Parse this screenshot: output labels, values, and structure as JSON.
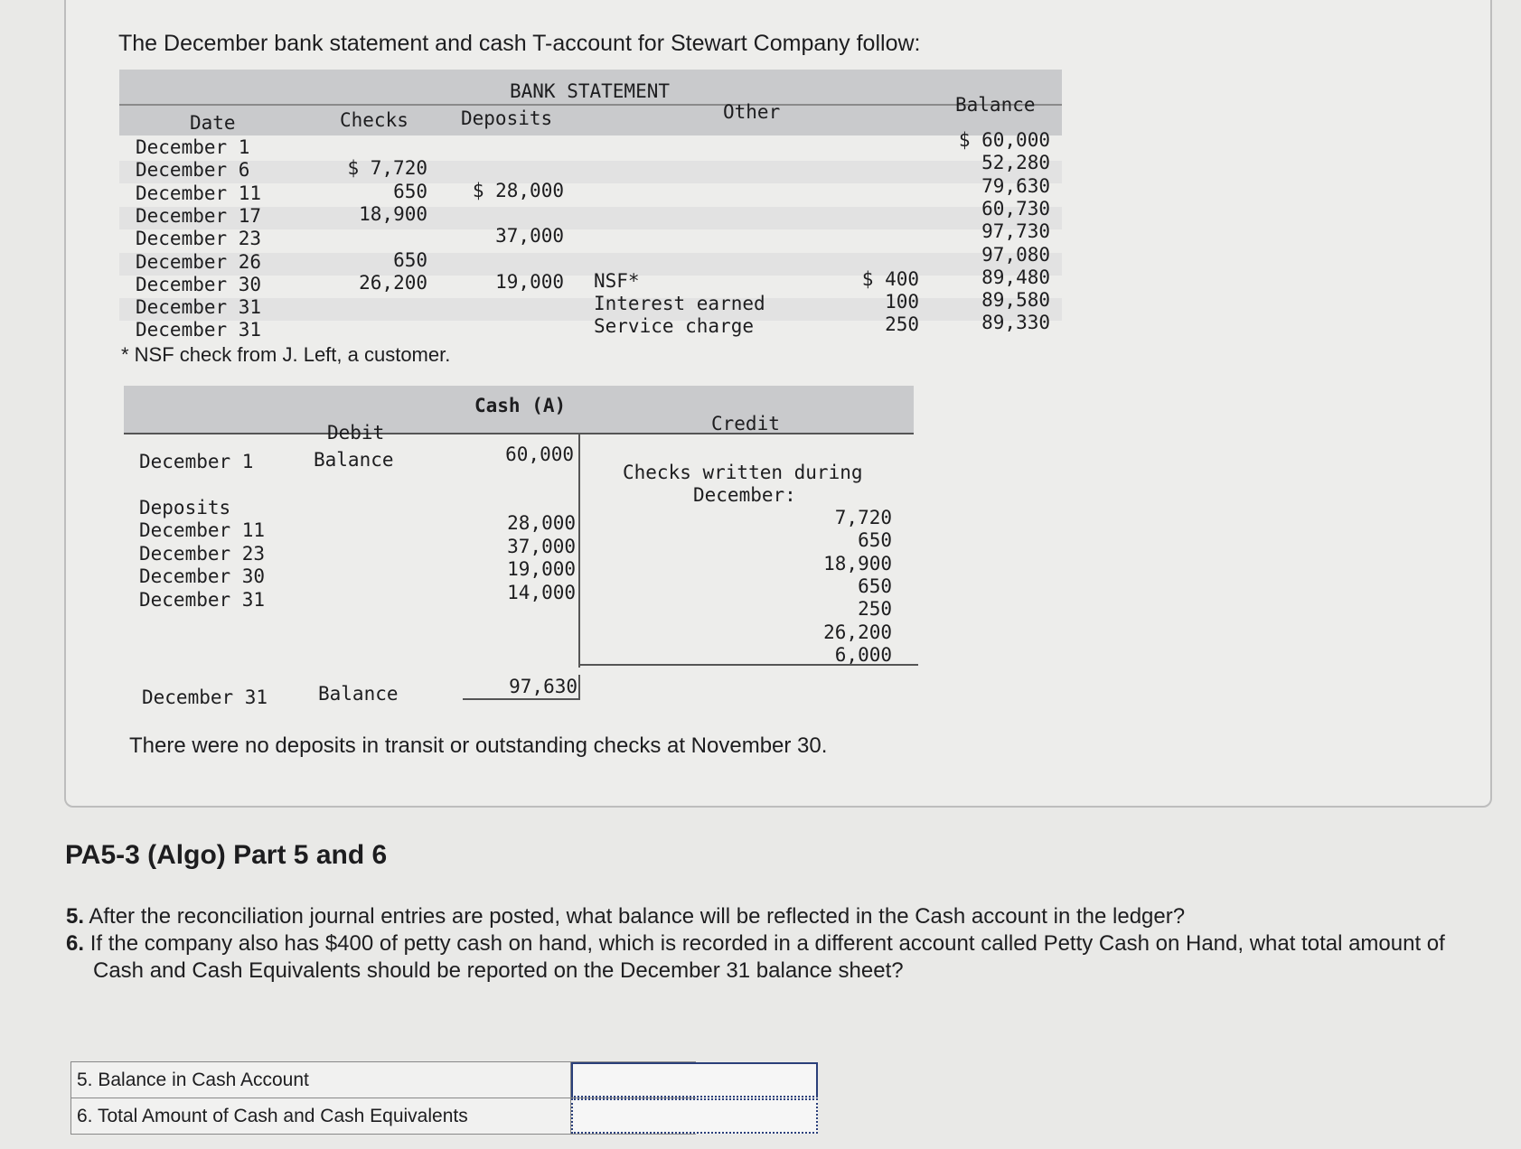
{
  "intro": "The December bank statement and cash T-account for Stewart Company follow:",
  "bank_statement": {
    "title": "BANK STATEMENT",
    "headers": {
      "date": "Date",
      "checks": "Checks",
      "deposits": "Deposits",
      "other": "Other",
      "balance": "Balance"
    },
    "rows": [
      {
        "date": "December 1",
        "checks": "",
        "deposits": "",
        "other_label": "",
        "other_amount": "",
        "balance": "$ 60,000"
      },
      {
        "date": "December 6",
        "checks": "$ 7,720",
        "deposits": "",
        "other_label": "",
        "other_amount": "",
        "balance": "52,280"
      },
      {
        "date": "December 11",
        "checks": "650",
        "deposits": "$ 28,000",
        "other_label": "",
        "other_amount": "",
        "balance": "79,630"
      },
      {
        "date": "December 17",
        "checks": "18,900",
        "deposits": "",
        "other_label": "",
        "other_amount": "",
        "balance": "60,730"
      },
      {
        "date": "December 23",
        "checks": "",
        "deposits": "37,000",
        "other_label": "",
        "other_amount": "",
        "balance": "97,730"
      },
      {
        "date": "December 26",
        "checks": "650",
        "deposits": "",
        "other_label": "",
        "other_amount": "",
        "balance": "97,080"
      },
      {
        "date": "December 30",
        "checks": "26,200",
        "deposits": "19,000",
        "other_label": "NSF*",
        "other_amount": "$ 400",
        "balance": "89,480"
      },
      {
        "date": "December 31",
        "checks": "",
        "deposits": "",
        "other_label": "Interest earned",
        "other_amount": "100",
        "balance": "89,580"
      },
      {
        "date": "December 31",
        "checks": "",
        "deposits": "",
        "other_label": "Service charge",
        "other_amount": "250",
        "balance": "89,330"
      }
    ],
    "footnote": "* NSF check from J. Left, a customer."
  },
  "cash_t_account": {
    "title": "Cash (A)",
    "debit_label": "Debit",
    "credit_label": "Credit",
    "opening": {
      "date": "December 1",
      "label": "Balance",
      "amount": "60,000"
    },
    "deposits_label": "Deposits",
    "deposits": [
      {
        "date": "December 11",
        "amount": "28,000"
      },
      {
        "date": "December 23",
        "amount": "37,000"
      },
      {
        "date": "December 30",
        "amount": "19,000"
      },
      {
        "date": "December 31",
        "amount": "14,000"
      }
    ],
    "credit_heading_1": "Checks written during",
    "credit_heading_2": "December:",
    "checks": [
      "7,720",
      "650",
      "18,900",
      "650",
      "250",
      "26,200",
      "6,000"
    ],
    "closing": {
      "date": "December 31",
      "label": "Balance",
      "amount": "97,630"
    }
  },
  "note": "There were no deposits in transit or outstanding checks at November 30.",
  "heading": "PA5-3 (Algo) Part 5 and 6",
  "questions": [
    {
      "num": "5.",
      "text": "After the reconciliation journal entries are posted, what balance will be reflected in the Cash account in the ledger?"
    },
    {
      "num": "6.",
      "text": "If the company also has $400 of petty cash on hand, which is recorded in a different account called Petty Cash on Hand, what total amount of Cash and Cash Equivalents should be reported on the December 31 balance sheet?"
    }
  ],
  "answers": [
    {
      "label": "5. Balance in Cash Account",
      "value": ""
    },
    {
      "label": "6. Total Amount of Cash and Cash Equivalents",
      "value": ""
    }
  ]
}
